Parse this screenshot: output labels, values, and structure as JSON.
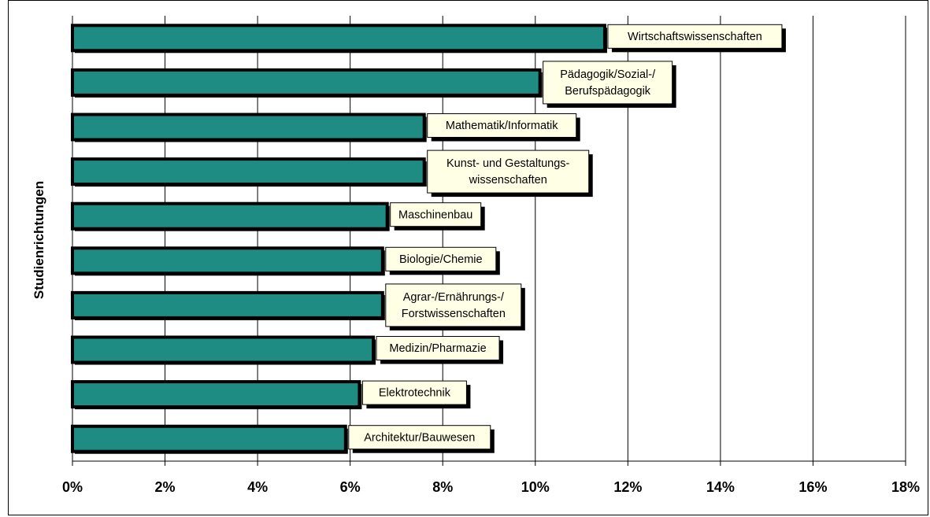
{
  "chart_data": {
    "type": "bar",
    "orientation": "horizontal",
    "ylabel": "Studienrichtungen",
    "xlabel": "",
    "xlim": [
      0,
      18
    ],
    "x_ticks": [
      "0%",
      "2%",
      "4%",
      "6%",
      "8%",
      "10%",
      "12%",
      "14%",
      "16%",
      "18%"
    ],
    "grid": "vertical",
    "bar_color": "#1f8c84",
    "categories": [
      "Wirtschaftswissenschaften",
      "Pädagogik/Sozial-/ Berufspädagogik",
      "Mathematik/Informatik",
      "Kunst- und Gestaltungs- wissenschaften",
      "Maschinenbau",
      "Biologie/Chemie",
      "Agrar-/Ernährungs-/ Forstwissenschaften",
      "Medizin/Pharmazie",
      "Elektrotechnik",
      "Architektur/Bauwesen"
    ],
    "label_lines": [
      [
        "Wirtschaftswissenschaften"
      ],
      [
        "Pädagogik/Sozial-/",
        "Berufspädagogik"
      ],
      [
        "Mathematik/Informatik"
      ],
      [
        "Kunst- und Gestaltungs-",
        "wissenschaften"
      ],
      [
        "Maschinenbau"
      ],
      [
        "Biologie/Chemie"
      ],
      [
        "Agrar-/Ernährungs-/",
        "Forstwissenschaften"
      ],
      [
        "Medizin/Pharmazie"
      ],
      [
        "Elektrotechnik"
      ],
      [
        "Architektur/Bauwesen"
      ]
    ],
    "values": [
      11.5,
      10.1,
      7.6,
      7.6,
      6.8,
      6.7,
      6.7,
      6.5,
      6.2,
      5.9
    ]
  }
}
